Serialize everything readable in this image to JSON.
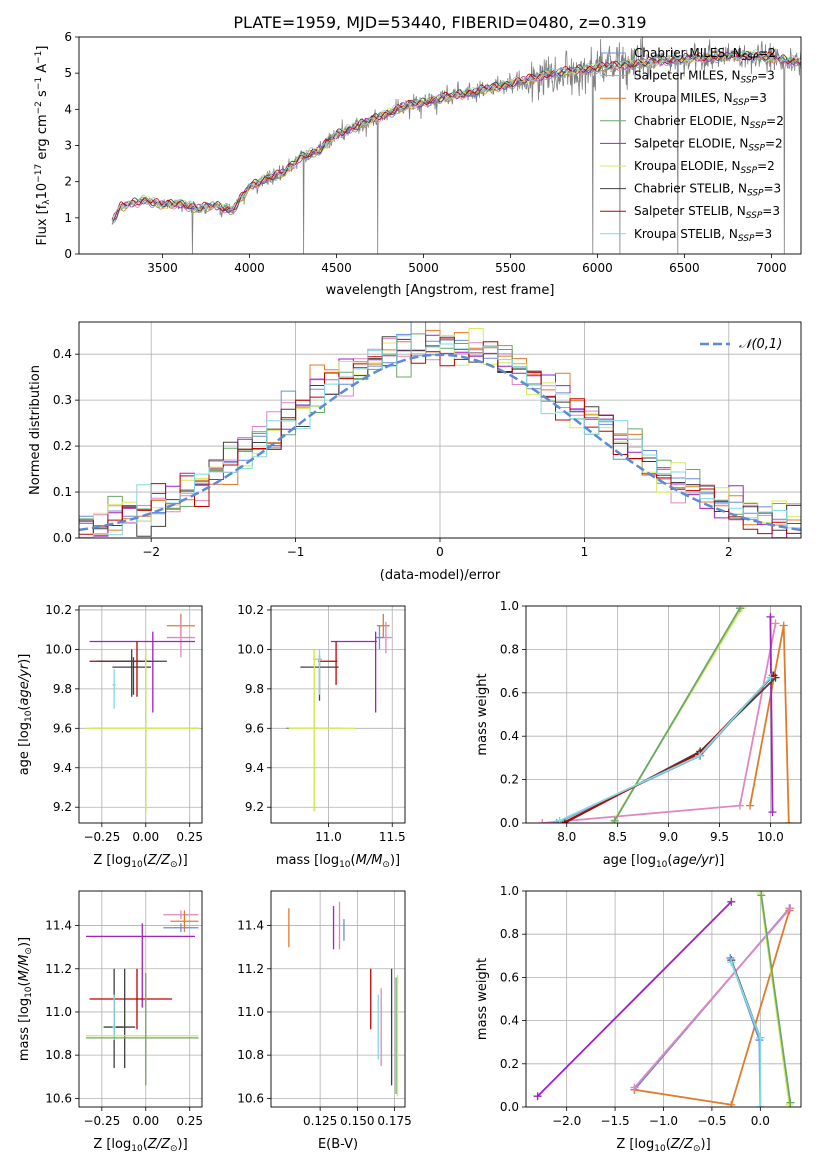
{
  "figure": {
    "title": "PLATE=1959, MJD=53440, FIBERID=0480, z=0.319"
  },
  "series": [
    {
      "name": "Chabrier MILES, N_SSP=2",
      "label": "Chabrier MILES, N",
      "sub": "SSP",
      "suffix": "=2",
      "color": "#6a8cdb"
    },
    {
      "name": "Salpeter MILES, N_SSP=3",
      "label": "Salpeter MILES, N",
      "sub": "SSP",
      "suffix": "=3",
      "color": "#e086c0"
    },
    {
      "name": "Kroupa MILES, N_SSP=3",
      "label": "Kroupa MILES, N",
      "sub": "SSP",
      "suffix": "=3",
      "color": "#e07b2a"
    },
    {
      "name": "Chabrier ELODIE, N_SSP=2",
      "label": "Chabrier ELODIE, N",
      "sub": "SSP",
      "suffix": "=2",
      "color": "#6aa86a"
    },
    {
      "name": "Salpeter ELODIE, N_SSP=2",
      "label": "Salpeter ELODIE, N",
      "sub": "SSP",
      "suffix": "=2",
      "color": "#a020c0"
    },
    {
      "name": "Kroupa ELODIE, N_SSP=2",
      "label": "Kroupa ELODIE, N",
      "sub": "SSP",
      "suffix": "=2",
      "color": "#d8e860"
    },
    {
      "name": "Chabrier STELIB, N_SSP=3",
      "label": "Chabrier STELIB, N",
      "sub": "SSP",
      "suffix": "=3",
      "color": "#404040"
    },
    {
      "name": "Salpeter STELIB, N_SSP=3",
      "label": "Salpeter STELIB, N",
      "sub": "SSP",
      "suffix": "=3",
      "color": "#c00000"
    },
    {
      "name": "Kroupa STELIB, N_SSP=3",
      "label": "Kroupa STELIB, N",
      "sub": "SSP",
      "suffix": "=3",
      "color": "#80d8e0"
    }
  ],
  "chart_data": [
    {
      "id": "spectrum",
      "type": "line",
      "xlabel": "wavelength [Angstrom, rest frame]",
      "ylabel": "Flux [f_λ 10^-17 erg cm^-2 s^-1 A^-1]",
      "xlim": [
        3020,
        7170
      ],
      "ylim": [
        0,
        6
      ],
      "xticks": [
        3500,
        4000,
        4500,
        5000,
        5500,
        6000,
        6500,
        7000
      ],
      "yticks": [
        0,
        1,
        2,
        3,
        4,
        5,
        6
      ],
      "data_color": "#808080",
      "x_start": 3210,
      "x_end": 7170,
      "model_anchors": {
        "x": [
          3210,
          3260,
          3400,
          3500,
          3600,
          3700,
          3800,
          3900,
          4000,
          4100,
          4200,
          4300,
          4400,
          4500,
          4700,
          4900,
          5100,
          5300,
          5500,
          5700,
          5900,
          6100,
          6300,
          6500,
          6700,
          6900,
          7170
        ],
        "y": [
          0.9,
          1.3,
          1.5,
          1.35,
          1.4,
          1.25,
          1.35,
          1.2,
          1.85,
          2.1,
          2.25,
          2.7,
          2.85,
          3.3,
          3.7,
          4.1,
          4.3,
          4.5,
          4.7,
          4.95,
          5.1,
          5.2,
          5.3,
          5.4,
          5.45,
          5.5,
          5.3
        ]
      },
      "grid": false,
      "legend": "upper right"
    },
    {
      "id": "residuals",
      "type": "step",
      "xlabel": "(data-model)/error",
      "ylabel": "Normed distribution",
      "xlim": [
        -2.5,
        2.5
      ],
      "ylim": [
        0,
        0.47
      ],
      "xticks": [
        -2,
        -1,
        0,
        1,
        2
      ],
      "yticks": [
        0.0,
        0.1,
        0.2,
        0.3,
        0.4
      ],
      "bin_width": 0.1,
      "reference": {
        "name": "𝒩(0,1)",
        "color": "#5b8bd6",
        "style": "dashed"
      },
      "grid": true,
      "legend": "upper right"
    },
    {
      "id": "age-vs-Z",
      "type": "scatter",
      "xlabel": "Z [log10(Z/Z⊙)]",
      "ylabel": "age [log10(age/yr)]",
      "xlim": [
        -0.38,
        0.32
      ],
      "ylim": [
        9.12,
        10.22
      ],
      "xticks": [
        -0.25,
        0.0,
        0.25
      ],
      "yticks": [
        9.2,
        9.4,
        9.6,
        9.8,
        10.0,
        10.2
      ],
      "xticklabels": [
        "−0.25",
        "0.00",
        "0.25"
      ],
      "points": [
        {
          "color": "#e07b2a",
          "x": 0.2,
          "xerr": [
            0.08,
            0.08
          ],
          "y": 10.12,
          "yerr": [
            0.06,
            0.06
          ]
        },
        {
          "color": "#e086c0",
          "x": 0.2,
          "xerr": [
            0.08,
            0.08
          ],
          "y": 10.06,
          "yerr": [
            0.1,
            0.1
          ]
        },
        {
          "color": "#a020c0",
          "x": 0.04,
          "xerr": [
            0.36,
            0.24
          ],
          "y": 10.04,
          "yerr": [
            0.36,
            0.05
          ]
        },
        {
          "color": "#c00000",
          "x": -0.05,
          "xerr": [
            0.27,
            0.08
          ],
          "y": 9.94,
          "yerr": [
            0.18,
            0.1
          ]
        },
        {
          "color": "#404040",
          "x": -0.08,
          "xerr": [
            0.2,
            0.2
          ],
          "y": 9.94,
          "yerr": [
            0.18,
            0.06
          ]
        },
        {
          "color": "#404040",
          "x": -0.07,
          "xerr": [
            0.12,
            0.1
          ],
          "y": 9.91,
          "yerr": [
            0.14,
            0.05
          ]
        },
        {
          "color": "#80d8e0",
          "x": -0.18,
          "xerr": [
            0.01,
            0.01
          ],
          "y": 9.82,
          "yerr": [
            0.12,
            0.08
          ]
        },
        {
          "color": "#6aa86a",
          "x": 0.0,
          "xerr": [
            0.3,
            0.3
          ],
          "y": 9.6,
          "yerr": [
            0.42,
            0.4
          ]
        },
        {
          "color": "#d8e860",
          "x": 0.0,
          "xerr": [
            0.34,
            0.3
          ],
          "y": 9.6,
          "yerr": [
            0.42,
            0.4
          ]
        }
      ]
    },
    {
      "id": "age-vs-mass",
      "type": "scatter",
      "xlabel": "mass [log10(M/M⊙)]",
      "ylabel": "",
      "xlim": [
        10.55,
        11.6
      ],
      "ylim": [
        9.12,
        10.22
      ],
      "xticks": [
        11.0,
        11.5
      ],
      "yticks": [
        9.2,
        9.4,
        9.6,
        9.8,
        10.0,
        10.2
      ],
      "points": [
        {
          "color": "#e07b2a",
          "x": 11.43,
          "xerr": [
            0.05,
            0.05
          ],
          "y": 10.12,
          "yerr": [
            0.06,
            0.06
          ]
        },
        {
          "color": "#e086c0",
          "x": 11.45,
          "xerr": [
            0.05,
            0.05
          ],
          "y": 10.06,
          "yerr": [
            0.08,
            0.08
          ]
        },
        {
          "color": "#6a8cdb",
          "x": 11.4,
          "xerr": [
            0.03,
            0.03
          ],
          "y": 10.06,
          "yerr": [
            0.06,
            0.06
          ]
        },
        {
          "color": "#a020c0",
          "x": 11.37,
          "xerr": [
            0.35,
            0.01
          ],
          "y": 10.04,
          "yerr": [
            0.36,
            0.05
          ]
        },
        {
          "color": "#c00000",
          "x": 11.06,
          "xerr": [
            0.14,
            0.01
          ],
          "y": 9.94,
          "yerr": [
            0.12,
            0.1
          ]
        },
        {
          "color": "#404040",
          "x": 10.93,
          "xerr": [
            0.15,
            0.15
          ],
          "y": 9.91,
          "yerr": [
            0.17,
            0.06
          ]
        },
        {
          "color": "#80d8e0",
          "x": 10.93,
          "xerr": [
            0.05,
            0.02
          ],
          "y": 9.95,
          "yerr": [
            0.18,
            0.05
          ]
        },
        {
          "color": "#6aa86a",
          "x": 10.89,
          "xerr": [
            0.22,
            0.22
          ],
          "y": 9.6,
          "yerr": [
            0.42,
            0.4
          ]
        },
        {
          "color": "#d8e860",
          "x": 10.89,
          "xerr": [
            0.2,
            0.32
          ],
          "y": 9.6,
          "yerr": [
            0.42,
            0.4
          ]
        }
      ]
    },
    {
      "id": "weight-vs-age",
      "type": "line",
      "xlabel": "age [log10(age/yr)]",
      "ylabel": "mass weight",
      "xlim": [
        7.6,
        10.3
      ],
      "ylim": [
        0.0,
        1.0
      ],
      "xticks": [
        8.0,
        8.5,
        9.0,
        9.5,
        10.0
      ],
      "yticks": [
        0.0,
        0.2,
        0.4,
        0.6,
        0.8,
        1.0
      ],
      "grid": true,
      "series": [
        {
          "color": "#e086c0",
          "points": [
            [
              7.76,
              0.0
            ],
            [
              9.7,
              0.08
            ],
            [
              10.05,
              0.92
            ]
          ]
        },
        {
          "color": "#e07b2a",
          "points": [
            [
              9.8,
              0.08
            ],
            [
              10.13,
              0.91
            ],
            [
              10.18,
              0.0
            ]
          ]
        },
        {
          "color": "#a020c0",
          "points": [
            [
              10.02,
              0.05
            ],
            [
              10.0,
              0.95
            ]
          ]
        },
        {
          "color": "#d8e860",
          "points": [
            [
              8.45,
              0.0
            ],
            [
              9.72,
              0.99
            ]
          ]
        },
        {
          "color": "#6aa86a",
          "points": [
            [
              8.47,
              0.01
            ],
            [
              9.7,
              0.99
            ]
          ]
        },
        {
          "color": "#6a8cdb",
          "points": [
            [
              7.9,
              0.0
            ],
            [
              9.31,
              0.31
            ],
            [
              10.02,
              0.68
            ]
          ]
        },
        {
          "color": "#404040",
          "points": [
            [
              7.98,
              0.0
            ],
            [
              9.31,
              0.33
            ],
            [
              10.05,
              0.67
            ]
          ]
        },
        {
          "color": "#c00000",
          "points": [
            [
              7.96,
              0.0
            ],
            [
              9.3,
              0.32
            ],
            [
              10.03,
              0.68
            ]
          ]
        },
        {
          "color": "#80d8e0",
          "points": [
            [
              7.93,
              0.01
            ],
            [
              9.3,
              0.31
            ],
            [
              10.0,
              0.67
            ]
          ]
        }
      ]
    },
    {
      "id": "mass-vs-Z",
      "type": "scatter",
      "xlabel": "Z [log10(Z/Z⊙)]",
      "ylabel": "mass [log10(M/M⊙)]",
      "xlim": [
        -0.38,
        0.32
      ],
      "ylim": [
        10.56,
        11.56
      ],
      "xticks": [
        -0.25,
        0.0,
        0.25
      ],
      "yticks": [
        10.6,
        10.8,
        11.0,
        11.2,
        11.4
      ],
      "xticklabels": [
        "−0.25",
        "0.00",
        "0.25"
      ],
      "points": [
        {
          "color": "#e086c0",
          "x": 0.2,
          "xerr": [
            0.1,
            0.1
          ],
          "y": 11.45,
          "yerr": [
            0.02,
            0.02
          ]
        },
        {
          "color": "#e07b2a",
          "x": 0.22,
          "xerr": [
            0.08,
            0.08
          ],
          "y": 11.42,
          "yerr": [
            0.05,
            0.05
          ]
        },
        {
          "color": "#6a8cdb",
          "x": 0.2,
          "xerr": [
            0.1,
            0.1
          ],
          "y": 11.39,
          "yerr": [
            0.02,
            0.02
          ]
        },
        {
          "color": "#a020c0",
          "x": -0.02,
          "xerr": [
            0.32,
            0.3
          ],
          "y": 11.35,
          "yerr": [
            0.33,
            0.06
          ]
        },
        {
          "color": "#c00000",
          "x": -0.05,
          "xerr": [
            0.27,
            0.2
          ],
          "y": 11.06,
          "yerr": [
            0.14,
            0.14
          ]
        },
        {
          "color": "#404040",
          "x": -0.18,
          "xerr": [
            0.06,
            0.05
          ],
          "y": 10.93,
          "yerr": [
            0.19,
            0.27
          ]
        },
        {
          "color": "#404040",
          "x": -0.12,
          "xerr": [
            0.06,
            0.06
          ],
          "y": 10.93,
          "yerr": [
            0.19,
            0.27
          ]
        },
        {
          "color": "#80d8e0",
          "x": -0.18,
          "xerr": [
            0.01,
            0.01
          ],
          "y": 10.93,
          "yerr": [
            0.06,
            0.15
          ]
        },
        {
          "color": "#d8e860",
          "x": 0.0,
          "xerr": [
            0.34,
            0.3
          ],
          "y": 10.89,
          "yerr": [
            0.22,
            0.3
          ]
        },
        {
          "color": "#6aa86a",
          "x": 0.0,
          "xerr": [
            0.34,
            0.3
          ],
          "y": 10.88,
          "yerr": [
            0.22,
            0.3
          ]
        }
      ]
    },
    {
      "id": "mass-vs-EBV",
      "type": "scatter",
      "xlabel": "E(B-V)",
      "ylabel": "",
      "xlim": [
        0.092,
        0.182
      ],
      "ylim": [
        10.56,
        11.56
      ],
      "xticks": [
        0.125,
        0.15,
        0.175
      ],
      "yticks": [
        10.6,
        10.8,
        11.0,
        11.2,
        11.4
      ],
      "xticklabels": [
        "0.125",
        "0.150",
        "0.175"
      ],
      "points": [
        {
          "color": "#e07b2a",
          "x": 0.104,
          "y": 11.39,
          "yerr": [
            0.09,
            0.09
          ]
        },
        {
          "color": "#e086c0",
          "x": 0.138,
          "y": 11.4,
          "yerr": [
            0.11,
            0.11
          ]
        },
        {
          "color": "#6a8cdb",
          "x": 0.141,
          "y": 11.38,
          "yerr": [
            0.05,
            0.05
          ]
        },
        {
          "color": "#a020c0",
          "x": 0.134,
          "y": 11.36,
          "yerr": [
            0.07,
            0.13
          ]
        },
        {
          "color": "#c00000",
          "x": 0.159,
          "y": 11.06,
          "yerr": [
            0.14,
            0.14
          ]
        },
        {
          "color": "#80d8e0",
          "x": 0.164,
          "y": 10.93,
          "yerr": [
            0.15,
            0.15
          ]
        },
        {
          "color": "#e086c0",
          "x": 0.166,
          "y": 10.93,
          "yerr": [
            0.18,
            0.18
          ]
        },
        {
          "color": "#404040",
          "x": 0.173,
          "y": 10.93,
          "yerr": [
            0.27,
            0.27
          ]
        },
        {
          "color": "#6aa86a",
          "x": 0.176,
          "y": 10.89,
          "yerr": [
            0.27,
            0.27
          ]
        },
        {
          "color": "#d8e860",
          "x": 0.177,
          "y": 10.89,
          "yerr": [
            0.28,
            0.28
          ]
        }
      ]
    },
    {
      "id": "weight-vs-Z",
      "type": "line",
      "xlabel": "Z [log10(Z/Z⊙)]",
      "ylabel": "mass weight",
      "xlim": [
        -2.42,
        0.42
      ],
      "ylim": [
        0.0,
        1.0
      ],
      "xticks": [
        -2.0,
        -1.5,
        -1.0,
        -0.5,
        0.0
      ],
      "yticks": [
        0.0,
        0.2,
        0.4,
        0.6,
        0.8,
        1.0
      ],
      "xticklabels": [
        "−2.0",
        "−1.5",
        "−1.0",
        "−0.5",
        "0.0"
      ],
      "grid": true,
      "series": [
        {
          "color": "#a020c0",
          "points": [
            [
              -2.3,
              0.05
            ],
            [
              -0.3,
              0.95
            ]
          ]
        },
        {
          "color": "#6a8cdb",
          "points": [
            [
              -1.3,
              0.08
            ],
            [
              0.3,
              0.92
            ]
          ]
        },
        {
          "color": "#e07b2a",
          "points": [
            [
              -1.3,
              0.08
            ],
            [
              -0.3,
              0.01
            ],
            [
              0.3,
              0.91
            ]
          ]
        },
        {
          "color": "#e086c0",
          "points": [
            [
              -1.3,
              0.09
            ],
            [
              0.31,
              0.92
            ]
          ]
        },
        {
          "color": "#d8e860",
          "points": [
            [
              0.0,
              0.99
            ],
            [
              0.3,
              0.01
            ]
          ]
        },
        {
          "color": "#6aa86a",
          "points": [
            [
              0.01,
              0.98
            ],
            [
              0.31,
              0.02
            ]
          ]
        },
        {
          "color": "#404040",
          "points": [
            [
              -0.3,
              0.68
            ],
            [
              0.0,
              0.32
            ]
          ]
        },
        {
          "color": "#6a8cdb",
          "points": [
            [
              -0.31,
              0.69
            ],
            [
              -0.01,
              0.31
            ],
            [
              0.0,
              0.0
            ]
          ]
        },
        {
          "color": "#80d8e0",
          "points": [
            [
              -0.3,
              0.67
            ],
            [
              0.0,
              0.32
            ],
            [
              0.0,
              0.0
            ]
          ]
        }
      ]
    }
  ]
}
